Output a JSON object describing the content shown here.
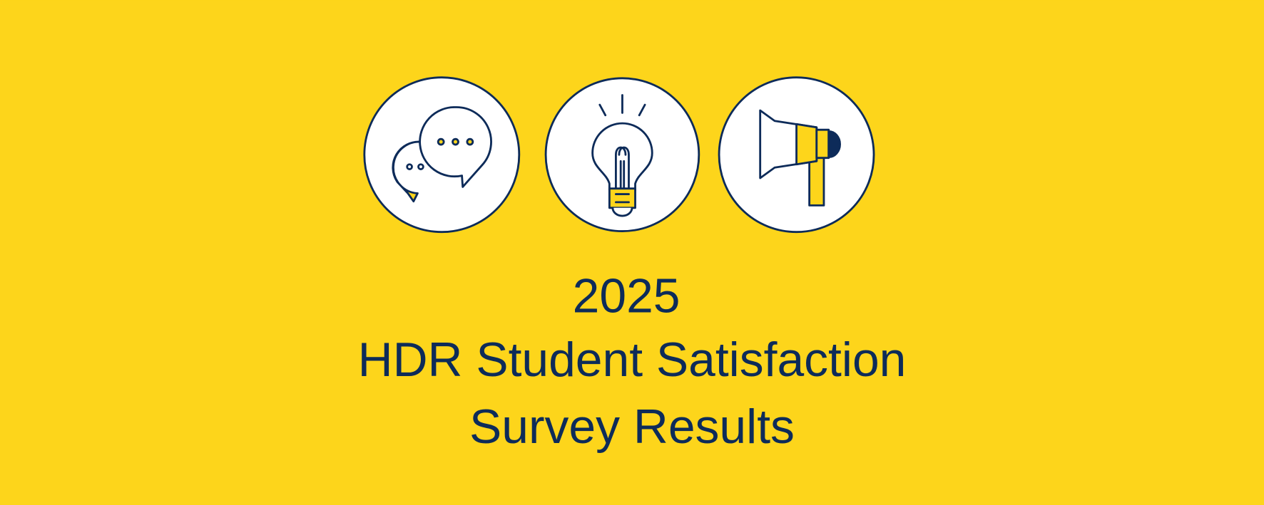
{
  "title": {
    "year": "2025",
    "line1": "HDR Student Satisfaction",
    "line2": "Survey Results"
  }
}
